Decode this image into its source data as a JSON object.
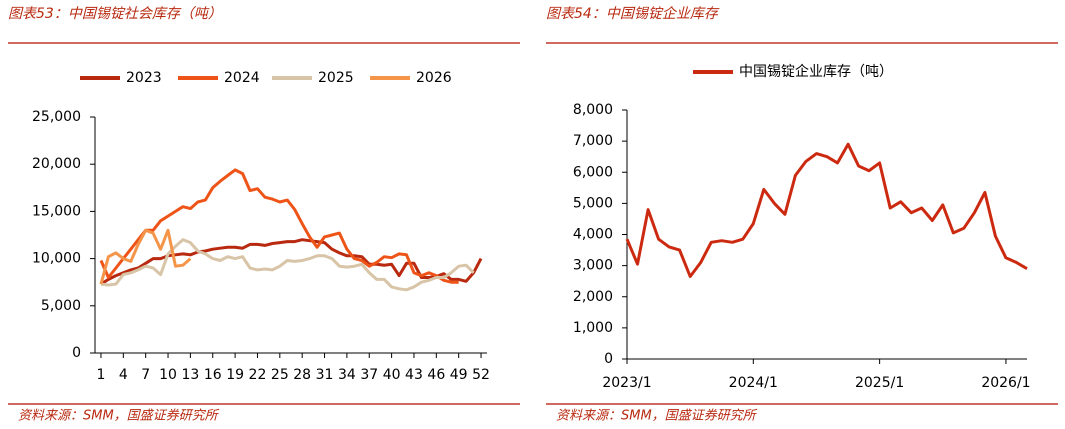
{
  "chart_data": [
    {
      "type": "line",
      "caption": "图表53：中国锡锭社会库存（吨）",
      "source": "资料来源：SMM，国盛证券研究所",
      "x": [
        1,
        2,
        3,
        4,
        5,
        6,
        7,
        8,
        9,
        10,
        11,
        12,
        13,
        14,
        15,
        16,
        17,
        18,
        19,
        20,
        21,
        22,
        23,
        24,
        25,
        26,
        27,
        28,
        29,
        30,
        31,
        32,
        33,
        34,
        35,
        36,
        37,
        38,
        39,
        40,
        41,
        42,
        43,
        44,
        45,
        46,
        47,
        48,
        49,
        50,
        51,
        52
      ],
      "xlim": [
        0.2,
        52.8
      ],
      "xticks": [
        1,
        4,
        7,
        10,
        13,
        16,
        19,
        22,
        25,
        28,
        31,
        34,
        37,
        40,
        43,
        46,
        49,
        52
      ],
      "ylim": [
        0,
        25000
      ],
      "yticks": [
        0,
        {
          "value": 5000,
          "label": "5,000"
        },
        {
          "value": 10000,
          "label": "10,000"
        },
        {
          "value": 15000,
          "label": "15,000"
        },
        {
          "value": 20000,
          "label": "20,000"
        },
        {
          "value": 25000,
          "label": "25,000"
        }
      ],
      "legend": "top",
      "series": [
        {
          "name": "2023",
          "color": "#b8290f",
          "values": [
            7300,
            7800,
            8200,
            8500,
            8800,
            9000,
            9500,
            10000,
            10000,
            10300,
            10400,
            10500,
            10400,
            10700,
            10800,
            11000,
            11100,
            11200,
            11200,
            11100,
            11500,
            11500,
            11400,
            11600,
            11700,
            11800,
            11800,
            12000,
            11900,
            11800,
            11700,
            11000,
            10600,
            10300,
            10300,
            10200,
            9400,
            9400,
            9300,
            9400,
            8200,
            9500,
            9500,
            8000,
            8000,
            8100,
            8400,
            7800,
            7800,
            7600,
            8500,
            10000
          ]
        },
        {
          "name": "2024",
          "color": "#ee5418",
          "values": [
            9800,
            8000,
            9000,
            10000,
            11000,
            12000,
            13000,
            13000,
            14000,
            14500,
            15000,
            15500,
            15300,
            16000,
            16200,
            17500,
            18200,
            18800,
            19400,
            19000,
            17200,
            17400,
            16500,
            16300,
            16000,
            16200,
            15200,
            13700,
            12300,
            11200,
            12300,
            12500,
            12700,
            11000,
            10000,
            9800,
            9200,
            9600,
            10200,
            10100,
            10500,
            10400,
            8500,
            8200,
            8500,
            8200,
            7700,
            7500,
            7500,
            null,
            null,
            null
          ]
        },
        {
          "name": "2025",
          "color": "#d8c4a6",
          "values": [
            7300,
            7200,
            7300,
            8300,
            8500,
            8800,
            9200,
            9000,
            8300,
            10500,
            11300,
            12000,
            11700,
            10800,
            10500,
            10000,
            9800,
            10200,
            10000,
            10200,
            9000,
            8800,
            8900,
            8800,
            9200,
            9800,
            9700,
            9800,
            10000,
            10300,
            10300,
            10000,
            9200,
            9100,
            9200,
            9400,
            8500,
            7800,
            7800,
            7000,
            6800,
            6700,
            7000,
            7500,
            7700,
            8000,
            8000,
            8500,
            9200,
            9300,
            8500,
            null
          ]
        },
        {
          "name": "2026",
          "color": "#f4954a",
          "values": [
            7300,
            10200,
            10600,
            10000,
            9700,
            11500,
            13000,
            12700,
            11000,
            13000,
            9200,
            9300,
            10000,
            null,
            null,
            null,
            null,
            null,
            null,
            null,
            null,
            null,
            null,
            null,
            null,
            null,
            null,
            null,
            null,
            null,
            null,
            null,
            null,
            null,
            null,
            null,
            null,
            null,
            null,
            null,
            null,
            null,
            null,
            null,
            null,
            null,
            null,
            null,
            null,
            null,
            null,
            null
          ]
        }
      ]
    },
    {
      "type": "line",
      "caption": "图表54：中国锡锭企业库存",
      "source": "资料来源：SMM，国盛证券研究所",
      "categories": [
        "2023/1",
        null,
        null,
        null,
        null,
        null,
        null,
        null,
        null,
        null,
        null,
        null,
        "2024/1",
        null,
        null,
        null,
        null,
        null,
        null,
        null,
        null,
        null,
        null,
        null,
        "2025/1",
        null,
        null,
        null,
        null,
        null,
        null,
        null,
        null,
        null,
        null,
        null,
        "2026/1",
        null,
        null
      ],
      "ylim": [
        0,
        8000
      ],
      "yticks": [
        0,
        {
          "value": 1000,
          "label": "1,000"
        },
        {
          "value": 2000,
          "label": "2,000"
        },
        {
          "value": 3000,
          "label": "3,000"
        },
        {
          "value": 4000,
          "label": "4,000"
        },
        {
          "value": 5000,
          "label": "5,000"
        },
        {
          "value": 6000,
          "label": "6,000"
        },
        {
          "value": 7000,
          "label": "7,000"
        },
        {
          "value": 8000,
          "label": "8,000"
        }
      ],
      "legend": "top",
      "series": [
        {
          "name": "中国锡锭企业库存（吨）",
          "color": "#cc2a10",
          "values": [
            3850,
            3050,
            4800,
            3850,
            3600,
            3500,
            2650,
            3100,
            3750,
            3800,
            3750,
            3850,
            4350,
            5450,
            5000,
            4650,
            5900,
            6350,
            6600,
            6500,
            6300,
            6900,
            6200,
            6050,
            6300,
            4850,
            5050,
            4700,
            4850,
            4450,
            4950,
            4050,
            4200,
            4700,
            5350,
            3950,
            3250,
            3100,
            2900
          ]
        }
      ]
    }
  ]
}
